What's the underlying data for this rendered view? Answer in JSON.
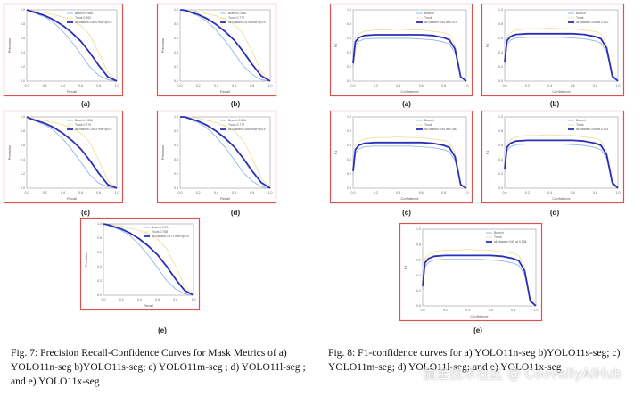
{
  "colors": {
    "frame": "#d9534f",
    "class_a": "#8fb6e8",
    "class_b": "#f0e0a0",
    "all": "#2b2fb8"
  },
  "fig7": {
    "panels": [
      {
        "label": "(a)",
        "legend": [
          "Branch 0.568",
          "Trunk 0.762",
          "all classes 0.665 mAP@0.5"
        ]
      },
      {
        "label": "(b)",
        "legend": [
          "Branch 0.580",
          "Trunk 0.772",
          "all classes 0.676 mAP@0.5"
        ]
      },
      {
        "label": "(c)",
        "legend": [
          "Branch 0.556",
          "Trunk 0.770",
          "all classes 0.663 mAP@0.5"
        ]
      },
      {
        "label": "(d)",
        "legend": [
          "Branch 0.584",
          "Trunk 0.776",
          "all classes 0.680 mAP@0.5"
        ]
      },
      {
        "label": "(e)",
        "legend": [
          "Branch 0.574",
          "Trunk 0.768",
          "all classes 0.671 mAP@0.5"
        ]
      }
    ],
    "xlabel": "Recall",
    "ylabel": "Precision",
    "caption": "Fig. 7: Precision Recall-Confidence Curves for Mask Metrics of a) YOLO11n-seg b)YOLO11s-seg; c) YOLO11m-seg ; d) YOLO11l-seg ; and e) YOLO11x-seg"
  },
  "fig8": {
    "panels": [
      {
        "label": "(a)",
        "legend": [
          "Branch",
          "Trunk",
          "all classes 0.64 at 0.379"
        ]
      },
      {
        "label": "(b)",
        "legend": [
          "Branch",
          "Trunk",
          "all classes 0.65 at 0.412"
        ]
      },
      {
        "label": "(c)",
        "legend": [
          "Branch",
          "Trunk",
          "all classes 0.64 at 0.350"
        ]
      },
      {
        "label": "(d)",
        "legend": [
          "Branch",
          "Trunk",
          "all classes 0.65 at 0.401"
        ]
      },
      {
        "label": "(e)",
        "legend": [
          "Branch",
          "Trunk",
          "all classes 0.65 at 0.368"
        ]
      }
    ],
    "xlabel": "Confidence",
    "ylabel": "F1",
    "caption": "Fig. 8: F1-confidence curves for a) YOLO11n-seg b)YOLO11s-seg; c) YOLO11m-seg; d) YOLO11l-seg; and e) YOLO11x-seg"
  },
  "watermark": "掘金技术社区 @ CoovallyAIHub",
  "chart_data": [
    {
      "type": "line",
      "title": "Fig. 7 Precision-Recall (mask)",
      "xlabel": "Recall",
      "ylabel": "Precision",
      "xlim": [
        0,
        1
      ],
      "ylim": [
        0,
        1
      ],
      "x": [
        0,
        0.05,
        0.1,
        0.2,
        0.3,
        0.4,
        0.5,
        0.6,
        0.7,
        0.8,
        0.9,
        1.0
      ],
      "series": [
        {
          "name": "Branch",
          "values": [
            1.0,
            0.97,
            0.95,
            0.9,
            0.82,
            0.7,
            0.55,
            0.38,
            0.2,
            0.08,
            0.02,
            0.0
          ]
        },
        {
          "name": "Trunk",
          "values": [
            1.0,
            0.99,
            0.98,
            0.96,
            0.93,
            0.9,
            0.85,
            0.78,
            0.65,
            0.4,
            0.12,
            0.0
          ]
        },
        {
          "name": "all classes",
          "values": [
            1.0,
            0.98,
            0.96,
            0.92,
            0.86,
            0.78,
            0.68,
            0.56,
            0.4,
            0.22,
            0.06,
            0.0
          ]
        }
      ]
    },
    {
      "type": "line",
      "title": "Fig. 8 F1-Confidence",
      "xlabel": "Confidence",
      "ylabel": "F1",
      "xlim": [
        0,
        1
      ],
      "ylim": [
        0,
        1
      ],
      "x": [
        0,
        0.02,
        0.05,
        0.1,
        0.2,
        0.3,
        0.4,
        0.5,
        0.6,
        0.7,
        0.8,
        0.85,
        0.9,
        0.93,
        0.95,
        1.0
      ],
      "series": [
        {
          "name": "Branch",
          "values": [
            0.2,
            0.5,
            0.56,
            0.59,
            0.6,
            0.6,
            0.6,
            0.6,
            0.59,
            0.58,
            0.55,
            0.52,
            0.4,
            0.2,
            0.05,
            0.0
          ]
        },
        {
          "name": "Trunk",
          "values": [
            0.3,
            0.6,
            0.66,
            0.7,
            0.72,
            0.72,
            0.73,
            0.72,
            0.72,
            0.7,
            0.68,
            0.65,
            0.5,
            0.25,
            0.07,
            0.0
          ]
        },
        {
          "name": "all classes",
          "values": [
            0.25,
            0.55,
            0.61,
            0.64,
            0.65,
            0.65,
            0.65,
            0.65,
            0.65,
            0.64,
            0.61,
            0.58,
            0.45,
            0.22,
            0.06,
            0.0
          ]
        }
      ]
    }
  ]
}
